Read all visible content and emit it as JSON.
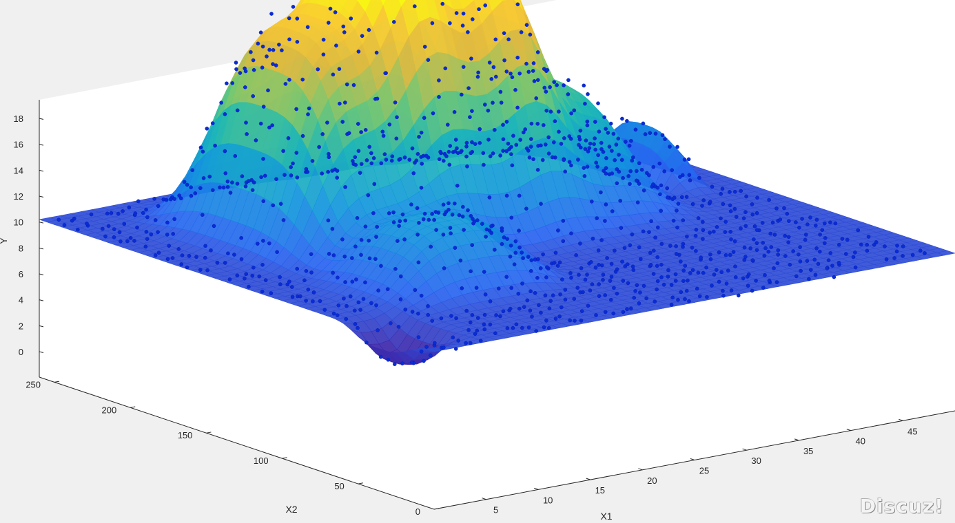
{
  "chart_data": {
    "type": "surface3d-scatter",
    "title": "",
    "xlabel": "X1",
    "ylabel": "X2",
    "zlabel": "Y",
    "xlim": [
      0,
      50
    ],
    "ylim": [
      0,
      260
    ],
    "zlim": [
      -2,
      19
    ],
    "x_ticks": [
      "5",
      "10",
      "15",
      "20",
      "25",
      "30",
      "35",
      "40",
      "45"
    ],
    "y_ticks": [
      "0",
      "50",
      "100",
      "150",
      "200",
      "250"
    ],
    "z_ticks": [
      "0",
      "2",
      "4",
      "6",
      "8",
      "10",
      "12",
      "14",
      "16",
      "18"
    ],
    "grid": false,
    "colormap": "parula",
    "scatter_color": "#0a2cd6",
    "surface_components": [
      {
        "x1": 14,
        "x2": 175,
        "peak_y": 16.5
      },
      {
        "x1": 24,
        "x2": 170,
        "peak_y": 18.5
      },
      {
        "x1": 33,
        "x2": 165,
        "peak_y": 9.5
      },
      {
        "x1": 13,
        "x2": 85,
        "peak_y": 5.0
      },
      {
        "x1": 45,
        "x2": 170,
        "peak_y": 4.0
      },
      {
        "x1": 2,
        "x2": 35,
        "peak_y": -2.5
      }
    ]
  },
  "watermark": "Discuz!"
}
